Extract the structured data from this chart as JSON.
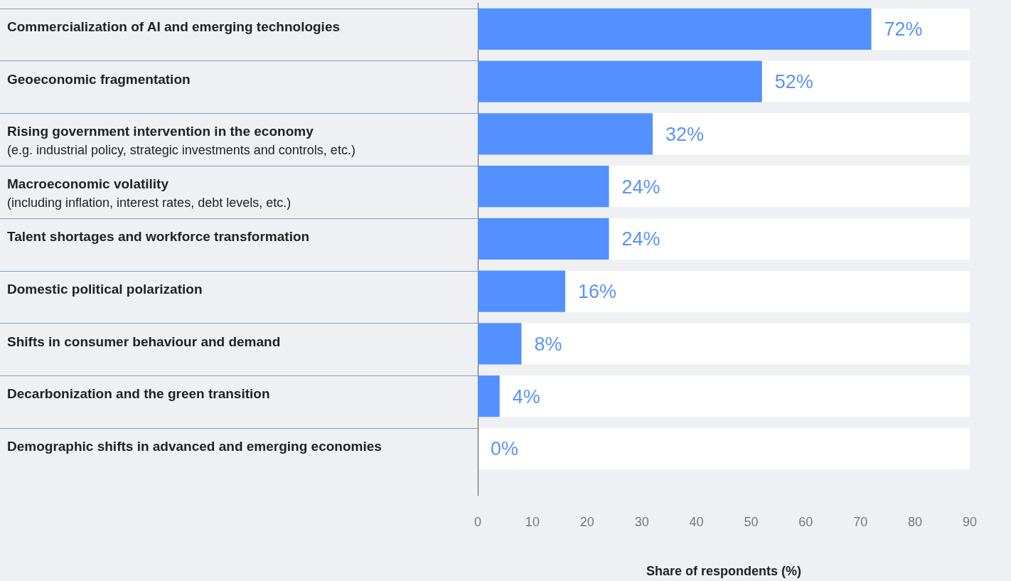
{
  "chart_data": {
    "type": "bar",
    "orientation": "horizontal",
    "xlabel": "Share of respondents (%)",
    "categories": [
      "Commercialization of AI and emerging technologies",
      "Geoeconomic fragmentation",
      "Rising government intervention in the economy\n(e.g. industrial policy, strategic investments and controls, etc.)",
      "Macroeconomic volatility\n(including inflation, interest rates, debt levels, etc.)",
      "Talent shortages and workforce transformation",
      "Domestic political polarization",
      "Shifts in consumer behaviour and demand",
      "Decarbonization and the green transition",
      "Demographic shifts in advanced and emerging economies"
    ],
    "values": [
      72,
      52,
      32,
      24,
      24,
      16,
      8,
      4,
      0
    ],
    "value_labels": [
      "72%",
      "52%",
      "32%",
      "24%",
      "24%",
      "16%",
      "8%",
      "4%",
      "0%"
    ],
    "color": "#5291ff",
    "grid": "y",
    "xlim": [
      0,
      90
    ],
    "xticks": [
      0,
      10,
      20,
      30,
      40,
      50,
      60,
      70,
      80,
      90
    ]
  }
}
